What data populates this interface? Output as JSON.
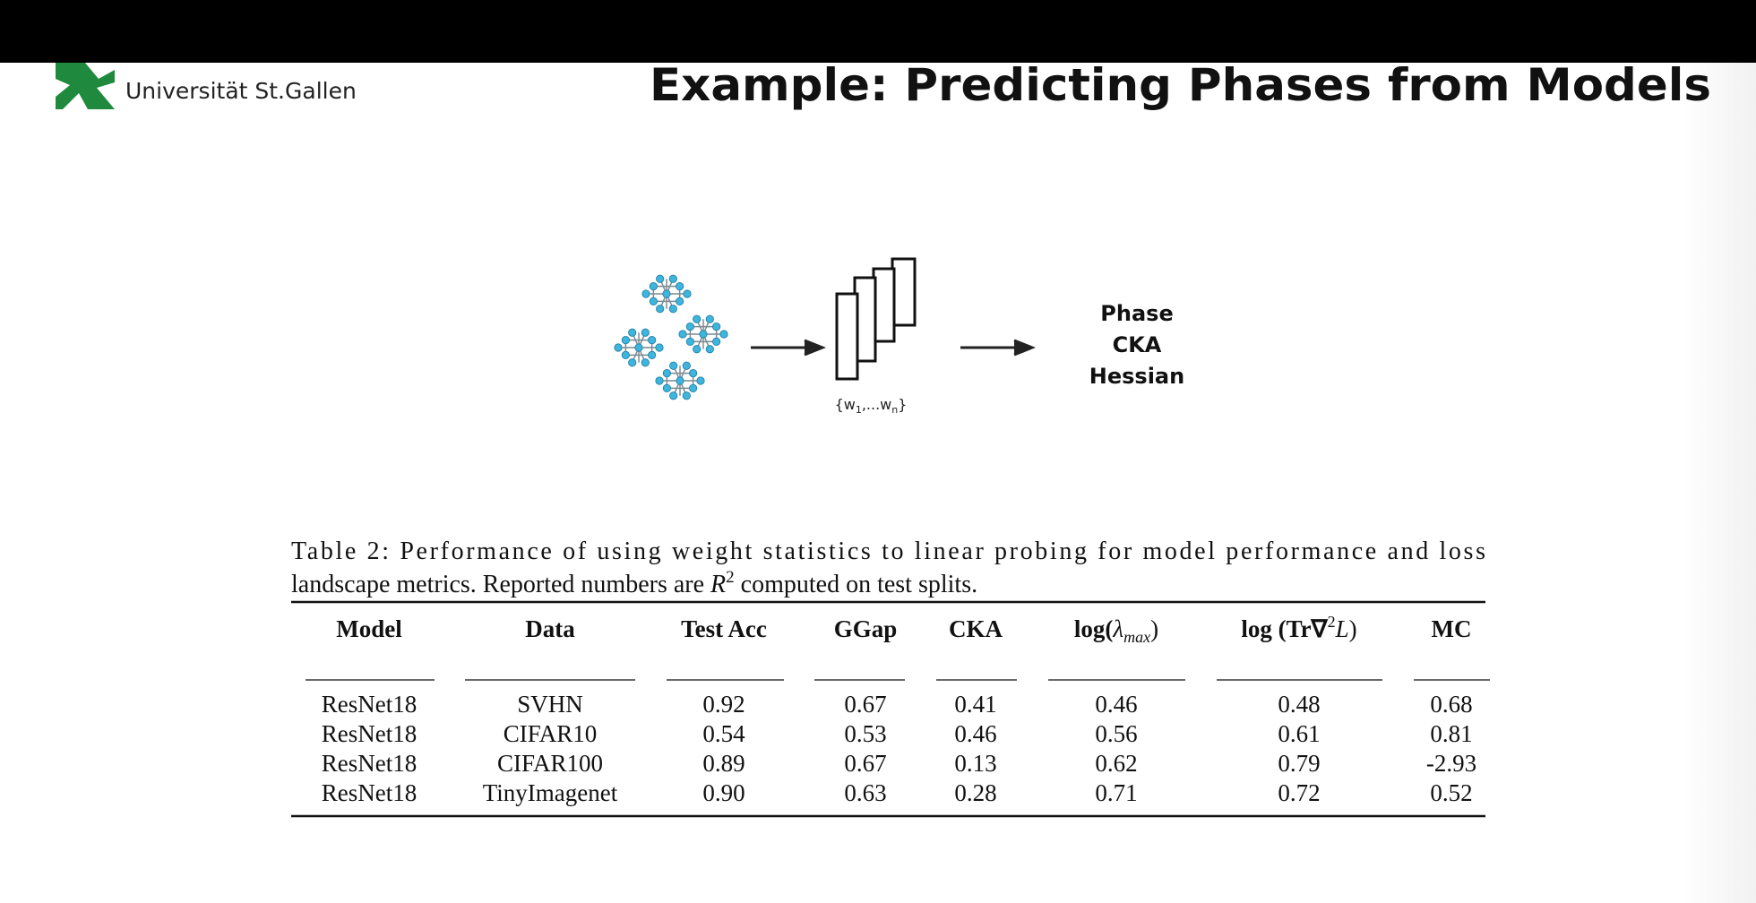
{
  "header": {
    "brand": "Universität St.Gallen",
    "title": "Example: Predicting Phases from Models"
  },
  "diagram": {
    "weights_label": [
      "{w",
      "1",
      ",...w",
      "n",
      "}"
    ],
    "outputs": [
      "Phase",
      "CKA",
      "Hessian"
    ]
  },
  "table": {
    "caption": [
      "Table 2: Performance of using weight statistics to linear probing for model performance and loss",
      "landscape metrics. Reported numbers are ",
      "R",
      "2",
      " computed on test splits."
    ],
    "headers": [
      "Model",
      "Data",
      "Test Acc",
      "GGap",
      "CKA",
      [
        "log(",
        "λ",
        "max",
        ")"
      ],
      [
        "log (Tr∇",
        "2",
        "L",
        ")"
      ],
      "MC"
    ],
    "rows": [
      [
        "ResNet18",
        "SVHN",
        "0.92",
        "0.67",
        "0.41",
        "0.46",
        "0.48",
        "0.68"
      ],
      [
        "ResNet18",
        "CIFAR10",
        "0.54",
        "0.53",
        "0.46",
        "0.56",
        "0.61",
        "0.81"
      ],
      [
        "ResNet18",
        "CIFAR100",
        "0.89",
        "0.67",
        "0.13",
        "0.62",
        "0.79",
        "-2.93"
      ],
      [
        "ResNet18",
        "TinyImagenet",
        "0.90",
        "0.63",
        "0.28",
        "0.71",
        "0.72",
        "0.52"
      ]
    ]
  }
}
